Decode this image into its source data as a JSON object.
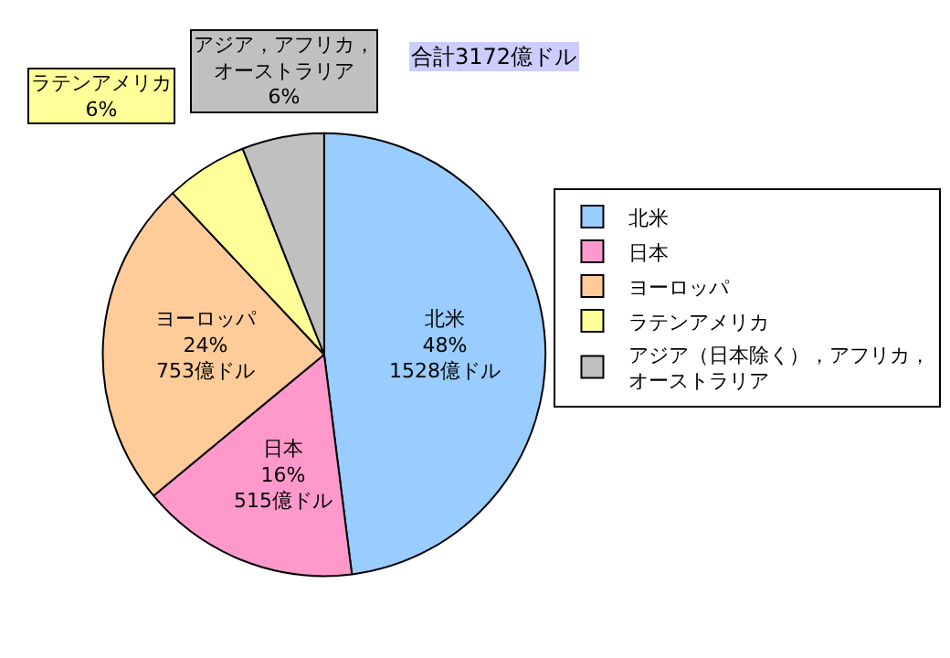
{
  "chart_data": {
    "type": "pie",
    "categories": [
      "北米",
      "日本",
      "ヨーロッパ",
      "ラテンアメリカ",
      "アジア（日本除く），アフリカ，オーストラリア"
    ],
    "values": [
      48,
      16,
      24,
      6,
      6
    ],
    "colors": [
      "#99ccff",
      "#ff99cc",
      "#ffcc99",
      "#ffff99",
      "#c0c0c0"
    ],
    "value_labels": [
      "北米\n48%\n1528億ドル",
      "日本\n16%\n515億ドル",
      "ヨーロッパ\n24%\n753億ドル",
      "ラテンアメリカ\n6%",
      "アジア，アフリカ，オーストラリア\n6%"
    ],
    "annotations": [
      "合計3172億ドル"
    ],
    "legend": "right"
  }
}
